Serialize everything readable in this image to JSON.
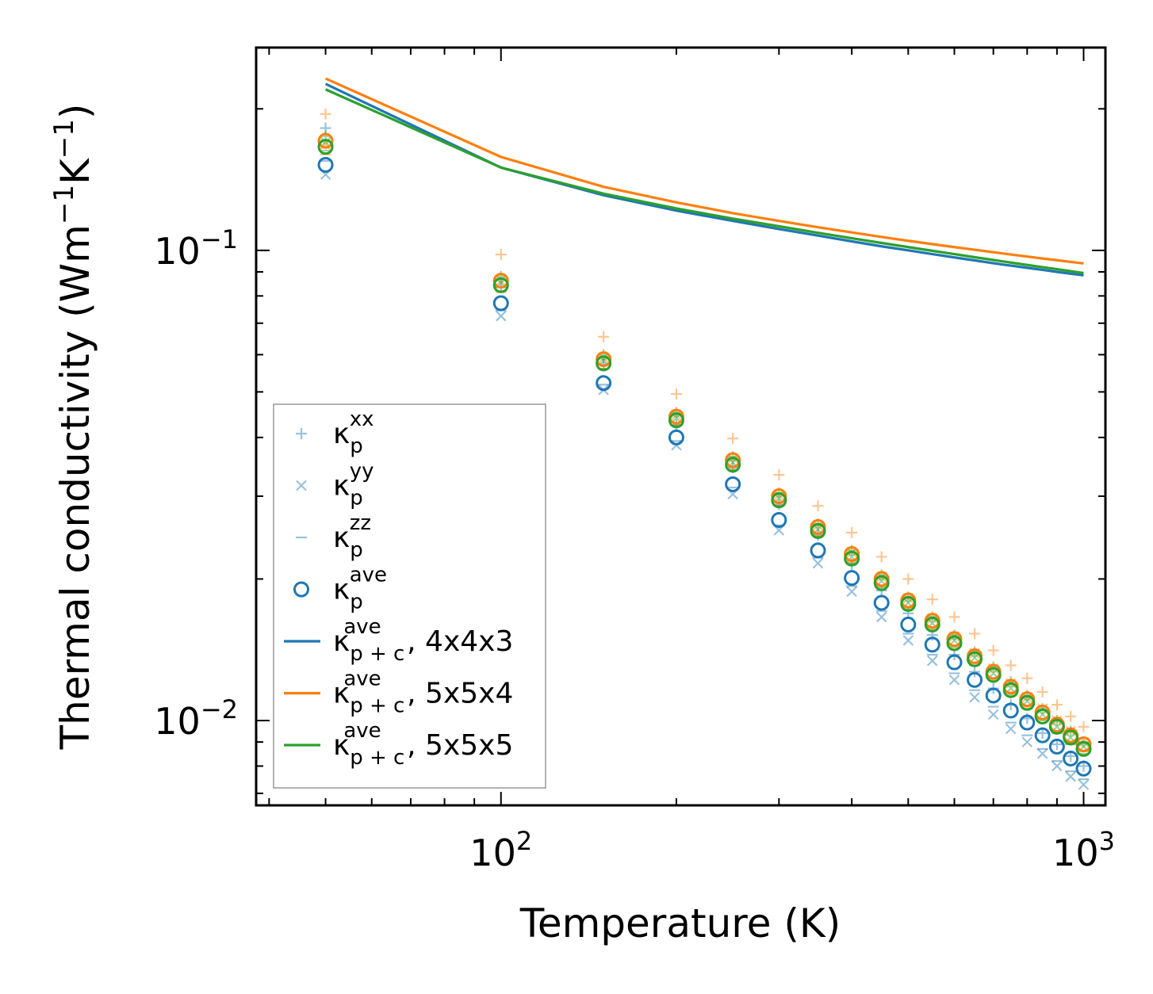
{
  "chart_data": {
    "type": "scatter",
    "xscale": "log",
    "yscale": "log",
    "xlabel": "Temperature (K)",
    "ylabel": {
      "main": "Thermal conductivity (Wm",
      "exp1": "−1",
      "mid": "K",
      "exp2": "−1",
      "close": ")"
    },
    "xlim": [
      38,
      1090
    ],
    "ylim": [
      0.0066,
      0.27
    ],
    "xticks": [
      {
        "value": 100,
        "base": "10",
        "exp": "2"
      },
      {
        "value": 1000,
        "base": "10",
        "exp": "3"
      }
    ],
    "yticks": [
      {
        "value": 0.1,
        "base": "10",
        "exp": "−1"
      },
      {
        "value": 0.01,
        "base": "10",
        "exp": "−2"
      }
    ],
    "temperatures": [
      50,
      100,
      150,
      200,
      250,
      300,
      350,
      400,
      450,
      500,
      550,
      600,
      650,
      700,
      750,
      800,
      850,
      900,
      950,
      1000
    ],
    "series": [
      {
        "name": "κp xx (config 1)",
        "marker": "plus",
        "color": "#1f77b4",
        "opacity": 0.45,
        "values": [
          0.182,
          0.0835,
          0.0572,
          0.0425,
          0.0345,
          0.0288,
          0.0248,
          0.0215,
          0.0189,
          0.0169,
          0.0152,
          0.0138,
          0.0127,
          0.0117,
          0.0108,
          0.0101,
          0.0094,
          0.0089,
          0.0084,
          0.008
        ]
      },
      {
        "name": "κp yy (config 1)",
        "marker": "x",
        "color": "#1f77b4",
        "opacity": 0.45,
        "values": [
          0.145,
          0.0725,
          0.0505,
          0.0385,
          0.0303,
          0.0254,
          0.0216,
          0.0188,
          0.0166,
          0.0148,
          0.0134,
          0.0122,
          0.0112,
          0.0103,
          0.0096,
          0.009,
          0.0085,
          0.008,
          0.0076,
          0.0073
        ]
      },
      {
        "name": "κp zz (config 1)",
        "marker": "dash",
        "color": "#1f77b4",
        "opacity": 0.45,
        "values": [
          0.155,
          0.0745,
          0.0518,
          0.0393,
          0.0313,
          0.026,
          0.0222,
          0.0193,
          0.0171,
          0.0153,
          0.0138,
          0.0126,
          0.0116,
          0.0107,
          0.0099,
          0.0093,
          0.0087,
          0.0082,
          0.0078,
          0.0075
        ]
      },
      {
        "name": "κp ave (config 1)",
        "marker": "circle",
        "color": "#1f77b4",
        "opacity": 1,
        "values": [
          0.152,
          0.0772,
          0.0522,
          0.04,
          0.0318,
          0.0267,
          0.023,
          0.0201,
          0.0178,
          0.016,
          0.0145,
          0.0133,
          0.0122,
          0.0113,
          0.0105,
          0.0099,
          0.0093,
          0.0088,
          0.0083,
          0.0079
        ]
      },
      {
        "name": "κp xx (config 2)",
        "marker": "plus",
        "color": "#ff7f0e",
        "opacity": 0.45,
        "values": [
          0.195,
          0.098,
          0.0655,
          0.0495,
          0.0398,
          0.0333,
          0.0286,
          0.0251,
          0.0223,
          0.02,
          0.0181,
          0.0166,
          0.0153,
          0.0141,
          0.0131,
          0.0123,
          0.0115,
          0.0108,
          0.0102,
          0.0097
        ]
      },
      {
        "name": "κp yy (config 2)",
        "marker": "x",
        "color": "#ff7f0e",
        "opacity": 0.45,
        "values": [
          0.168,
          0.0862,
          0.059,
          0.0447,
          0.0361,
          0.0302,
          0.026,
          0.0228,
          0.0202,
          0.0182,
          0.0165,
          0.0151,
          0.0139,
          0.0129,
          0.012,
          0.0112,
          0.0106,
          0.01,
          0.0095,
          0.009
        ]
      },
      {
        "name": "κp zz (config 2)",
        "marker": "dash",
        "color": "#ff7f0e",
        "opacity": 0.45,
        "values": [
          0.16,
          0.0815,
          0.056,
          0.0425,
          0.0342,
          0.0287,
          0.0247,
          0.0217,
          0.0193,
          0.0173,
          0.0157,
          0.0144,
          0.0133,
          0.0123,
          0.0115,
          0.0107,
          0.0101,
          0.0095,
          0.009,
          0.0086
        ]
      },
      {
        "name": "κp ave (config 2)",
        "marker": "circle",
        "color": "#ff7f0e",
        "opacity": 1,
        "values": [
          0.171,
          0.0862,
          0.0587,
          0.0443,
          0.0358,
          0.03,
          0.0258,
          0.0226,
          0.02,
          0.018,
          0.0163,
          0.0149,
          0.0137,
          0.0127,
          0.0118,
          0.0111,
          0.0104,
          0.0098,
          0.0093,
          0.0089
        ]
      },
      {
        "name": "κp xx (config 3)",
        "marker": "plus",
        "color": "#2ca02c",
        "opacity": 0.45,
        "values": [
          0.175,
          0.088,
          0.06,
          0.0452,
          0.0364,
          0.0305,
          0.0262,
          0.023,
          0.0204,
          0.0183,
          0.0166,
          0.0152,
          0.014,
          0.013,
          0.0121,
          0.0113,
          0.0106,
          0.01,
          0.0095,
          0.009
        ]
      },
      {
        "name": "κp yy (config 3)",
        "marker": "x",
        "color": "#2ca02c",
        "opacity": 0.45,
        "values": [
          0.17,
          0.0852,
          0.0582,
          0.044,
          0.0354,
          0.0297,
          0.0255,
          0.0223,
          0.0198,
          0.0178,
          0.0161,
          0.0148,
          0.0136,
          0.0126,
          0.0117,
          0.011,
          0.0103,
          0.0097,
          0.0092,
          0.0088
        ]
      },
      {
        "name": "κp zz (config 3)",
        "marker": "dash",
        "color": "#2ca02c",
        "opacity": 0.45,
        "values": [
          0.163,
          0.082,
          0.056,
          0.0424,
          0.0341,
          0.0286,
          0.0246,
          0.0216,
          0.0192,
          0.0172,
          0.0156,
          0.0143,
          0.0131,
          0.0122,
          0.0113,
          0.0106,
          0.01,
          0.0094,
          0.0089,
          0.0085
        ]
      },
      {
        "name": "κp ave (config 3)",
        "marker": "circle",
        "color": "#2ca02c",
        "opacity": 1,
        "values": [
          0.166,
          0.0843,
          0.0575,
          0.0435,
          0.035,
          0.0294,
          0.0253,
          0.0221,
          0.0196,
          0.0177,
          0.016,
          0.0146,
          0.0135,
          0.0125,
          0.0116,
          0.0109,
          0.0102,
          0.0097,
          0.0092,
          0.0087
        ]
      }
    ],
    "lines": [
      {
        "name": "κp+c ave, 4x4x3",
        "color": "#1f77b4",
        "values": [
          0.226,
          0.15,
          0.131,
          0.1215,
          0.1155,
          0.111,
          0.1075,
          0.1045,
          0.102,
          0.1,
          0.0982,
          0.0966,
          0.0952,
          0.0939,
          0.0928,
          0.0918,
          0.0909,
          0.09,
          0.0892,
          0.0885
        ]
      },
      {
        "name": "κp+c ave, 5x5x4",
        "color": "#ff7f0e",
        "values": [
          0.232,
          0.158,
          0.1365,
          0.1265,
          0.12,
          0.1155,
          0.112,
          0.1092,
          0.1068,
          0.1048,
          0.1031,
          0.1016,
          0.1003,
          0.0991,
          0.098,
          0.097,
          0.0961,
          0.0953,
          0.0945,
          0.0938
        ]
      },
      {
        "name": "κp+c ave, 5x5x5",
        "color": "#2ca02c",
        "values": [
          0.22,
          0.15,
          0.132,
          0.1228,
          0.1168,
          0.1125,
          0.109,
          0.1061,
          0.1037,
          0.1016,
          0.0998,
          0.0982,
          0.0967,
          0.0954,
          0.0942,
          0.0931,
          0.0921,
          0.0912,
          0.0903,
          0.0895
        ]
      }
    ],
    "legend": {
      "position": "lower-left",
      "entries": [
        {
          "marker": "plus",
          "color": "#1f77b4",
          "faded": true,
          "base": "κ",
          "sub": "p",
          "sup": "xx",
          "suffix": ""
        },
        {
          "marker": "x",
          "color": "#1f77b4",
          "faded": true,
          "base": "κ",
          "sub": "p",
          "sup": "yy",
          "suffix": ""
        },
        {
          "marker": "dash",
          "color": "#1f77b4",
          "faded": true,
          "base": "κ",
          "sub": "p",
          "sup": "zz",
          "suffix": ""
        },
        {
          "marker": "circle",
          "color": "#1f77b4",
          "faded": false,
          "base": "κ",
          "sub": "p",
          "sup": "ave",
          "suffix": ""
        },
        {
          "marker": "line",
          "color": "#1f77b4",
          "faded": false,
          "base": "κ",
          "sub": "p + c",
          "sup": "ave",
          "suffix": ", 4x4x3"
        },
        {
          "marker": "line",
          "color": "#ff7f0e",
          "faded": false,
          "base": "κ",
          "sub": "p + c",
          "sup": "ave",
          "suffix": ", 5x5x4"
        },
        {
          "marker": "line",
          "color": "#2ca02c",
          "faded": false,
          "base": "κ",
          "sub": "p + c",
          "sup": "ave",
          "suffix": ", 5x5x5"
        }
      ]
    }
  }
}
